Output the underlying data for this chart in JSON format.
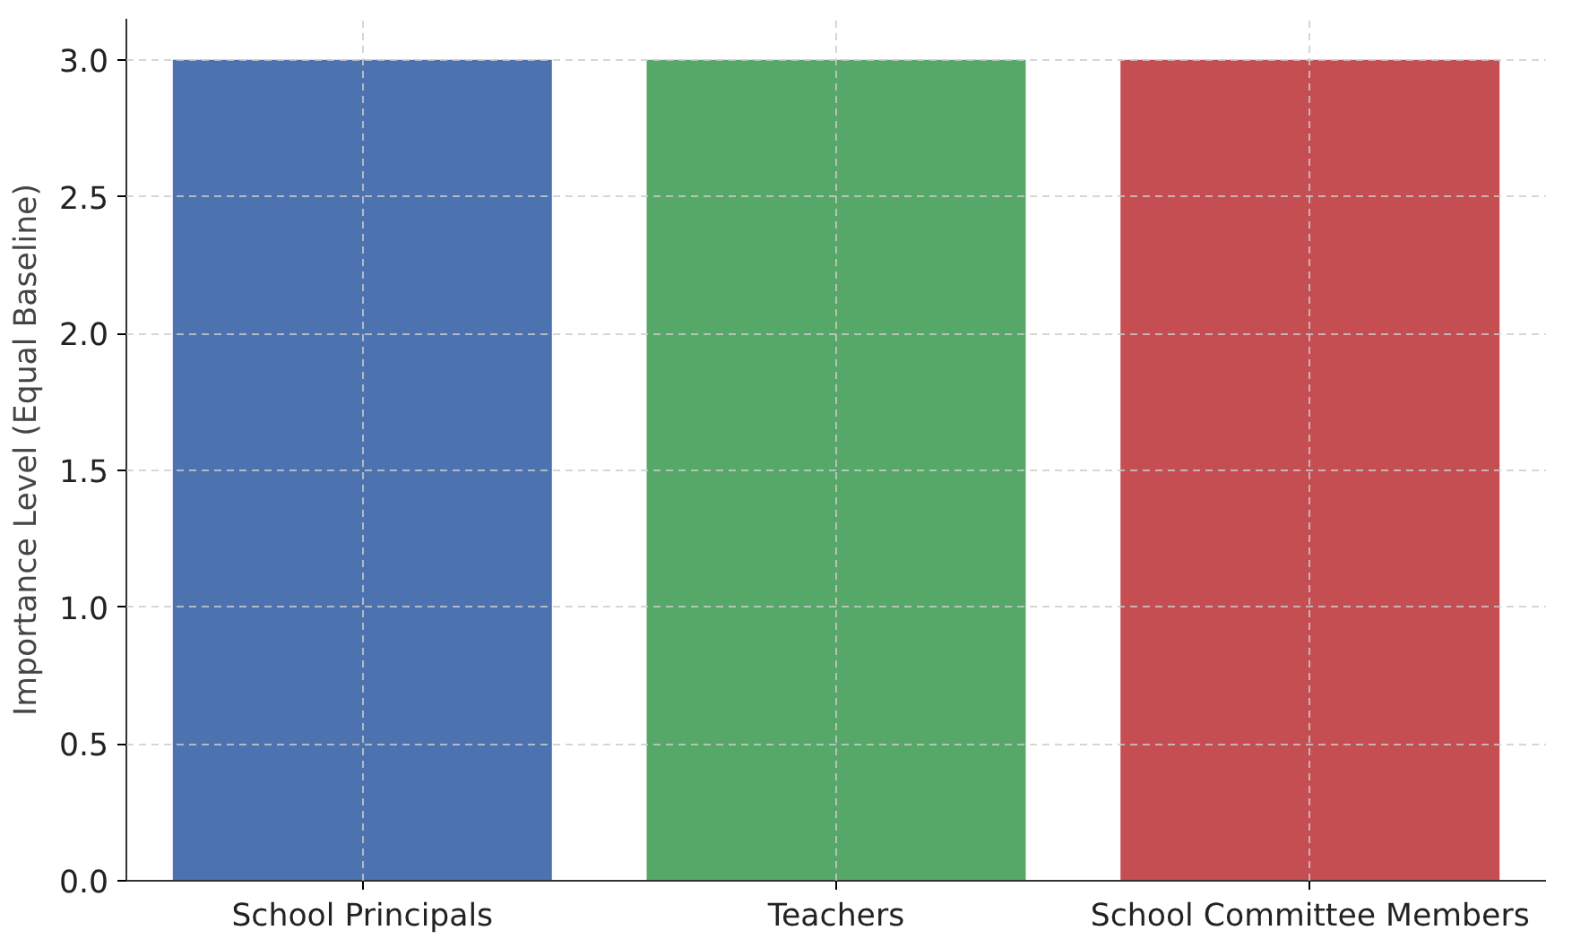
{
  "chart_data": {
    "type": "bar",
    "ylabel": "Importance Level (Equal Baseline)",
    "categories": [
      "School Principals",
      "Teachers",
      "School Committee Members"
    ],
    "values": [
      3.0,
      3.0,
      3.0
    ],
    "colors": [
      "#4c72b0",
      "#55a868",
      "#c44e52"
    ],
    "ylim": [
      0,
      3.15
    ],
    "yticks": [
      {
        "value": 0,
        "label": "0.0"
      },
      {
        "value": 0.5,
        "label": "0.5"
      },
      {
        "value": 1,
        "label": "1.0"
      },
      {
        "value": 1.5,
        "label": "1.5"
      },
      {
        "value": 2,
        "label": "2.0"
      },
      {
        "value": 2.5,
        "label": "2.5"
      },
      {
        "value": 3,
        "label": "3.0"
      }
    ],
    "grid": true
  }
}
